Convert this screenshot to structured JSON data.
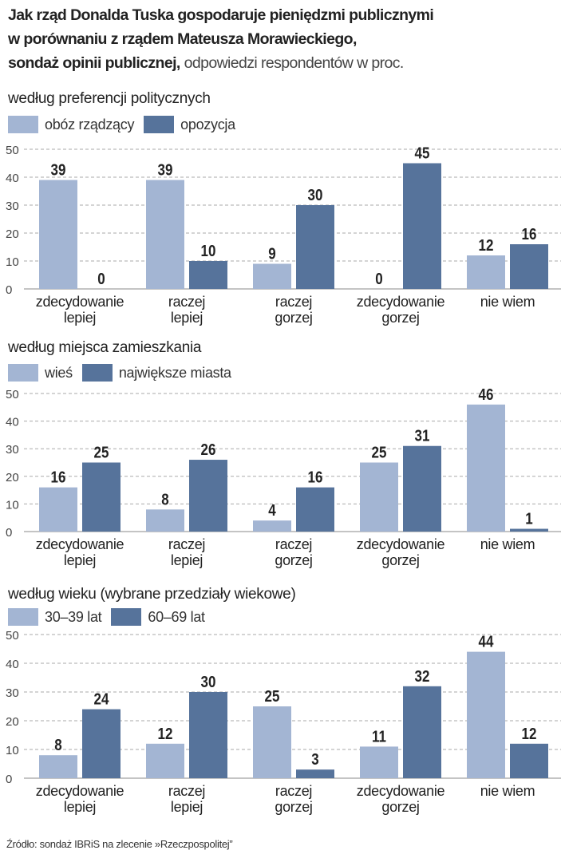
{
  "title": {
    "line1": "Jak rząd Donalda Tuska gospodaruje pieniędzmi publicznymi",
    "line2": "w porównaniu z rządem Mateusza Morawieckiego,",
    "line3_bold": "sondaż opinii publicznej,",
    "line3_light": "odpowiedzi respondentów w proc."
  },
  "source": "Źródło: sondaż IBRiS na zlecenie »Rzeczpospolitej”",
  "colors": {
    "light": "#a3b5d3",
    "dark": "#56739b"
  },
  "chart_data": [
    {
      "type": "bar",
      "title": "według preferencji politycznych",
      "categories": [
        [
          "zdecydowanie",
          "lepiej"
        ],
        [
          "raczej",
          "lepiej"
        ],
        [
          "raczej",
          "gorzej"
        ],
        [
          "zdecydowanie",
          "gorzej"
        ],
        [
          "nie wiem"
        ]
      ],
      "series": [
        {
          "name": "obóz rządzący",
          "values": [
            39,
            39,
            9,
            0,
            12
          ]
        },
        {
          "name": "opozycja",
          "values": [
            0,
            10,
            30,
            45,
            16
          ]
        }
      ],
      "yticks": [
        0,
        10,
        20,
        30,
        40,
        50
      ],
      "ylim": [
        0,
        50
      ],
      "grid": true
    },
    {
      "type": "bar",
      "title": "według miejsca zamieszkania",
      "categories": [
        [
          "zdecydowanie",
          "lepiej"
        ],
        [
          "raczej",
          "lepiej"
        ],
        [
          "raczej",
          "gorzej"
        ],
        [
          "zdecydowanie",
          "gorzej"
        ],
        [
          "nie wiem"
        ]
      ],
      "series": [
        {
          "name": "wieś",
          "values": [
            16,
            8,
            4,
            25,
            46
          ]
        },
        {
          "name": "największe miasta",
          "values": [
            25,
            26,
            16,
            31,
            1
          ]
        }
      ],
      "yticks": [
        0,
        10,
        20,
        30,
        40,
        50
      ],
      "ylim": [
        0,
        50
      ],
      "grid": true
    },
    {
      "type": "bar",
      "title": "według wieku (wybrane przedziały wiekowe)",
      "categories": [
        [
          "zdecydowanie",
          "lepiej"
        ],
        [
          "raczej",
          "lepiej"
        ],
        [
          "raczej",
          "gorzej"
        ],
        [
          "zdecydowanie",
          "gorzej"
        ],
        [
          "nie wiem"
        ]
      ],
      "series": [
        {
          "name": "30–39 lat",
          "values": [
            8,
            12,
            25,
            11,
            44
          ]
        },
        {
          "name": "60–69 lat",
          "values": [
            24,
            30,
            3,
            32,
            12
          ]
        }
      ],
      "yticks": [
        0,
        10,
        20,
        30,
        40,
        50
      ],
      "ylim": [
        0,
        50
      ],
      "grid": true
    }
  ]
}
